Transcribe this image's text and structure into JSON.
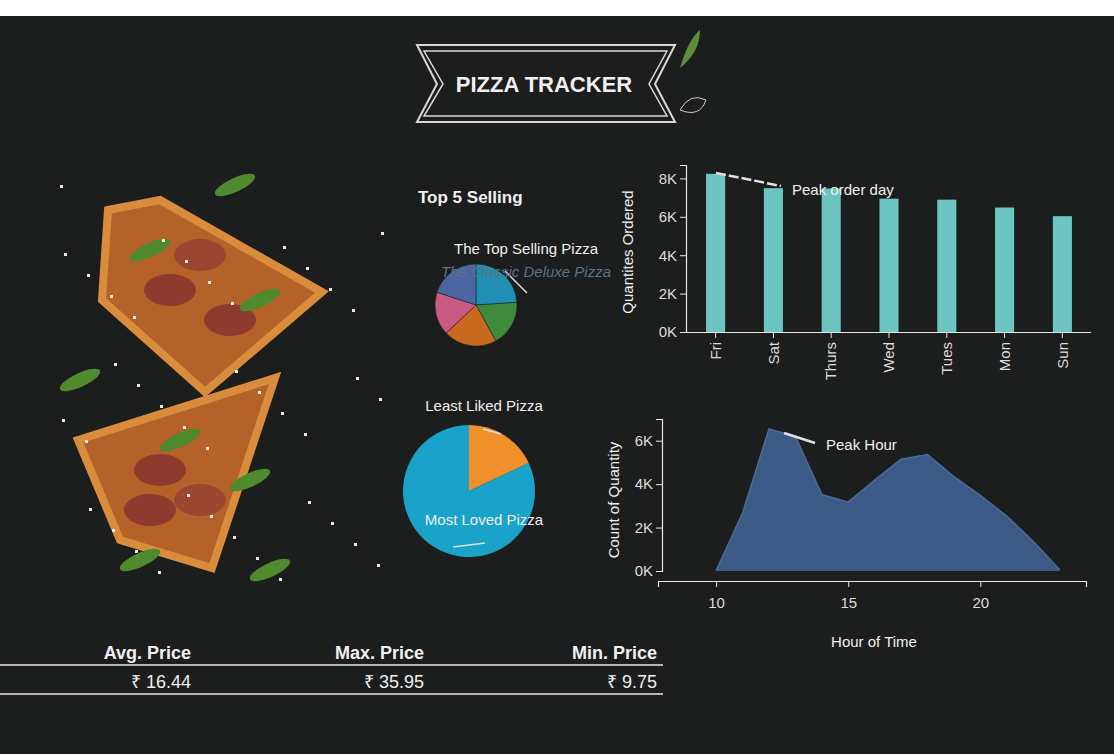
{
  "header": {
    "title": "PIZZA TRACKER"
  },
  "chart_data": [
    {
      "type": "pie",
      "title": "Top 5 Selling",
      "categories": [
        "The Classic Deluxe Pizza",
        null,
        null,
        null,
        null
      ],
      "values": [
        24,
        18,
        21,
        17,
        20
      ],
      "colors": [
        "#1f8fb3",
        "#3f8a3c",
        "#c9681f",
        "#c85a83",
        "#4b65a1"
      ],
      "annotations": [
        "The Top Selling Pizza"
      ]
    },
    {
      "type": "pie",
      "categories": [
        "Least Liked Pizza",
        "Most Loved Pizza"
      ],
      "values": [
        18,
        82
      ],
      "colors": [
        "#f0902c",
        "#1aa3c8"
      ]
    },
    {
      "type": "bar",
      "categories": [
        "Fri",
        "Sat",
        "Thurs",
        "Wed",
        "Tues",
        "Mon",
        "Sun"
      ],
      "values": [
        8242,
        7493,
        7478,
        6946,
        6895,
        6485,
        6035
      ],
      "color": "#6cc5c1",
      "ylabel": "Quantites Ordered",
      "ylim": [
        0,
        8700
      ],
      "yticks": [
        {
          "value": 0,
          "label": "0K"
        },
        {
          "value": 2000,
          "label": "2K"
        },
        {
          "value": 4000,
          "label": "4K"
        },
        {
          "value": 6000,
          "label": "6K"
        },
        {
          "value": 8000,
          "label": "8K"
        }
      ],
      "annotations": [
        "Peak order day"
      ]
    },
    {
      "type": "area",
      "x": [
        10,
        11,
        12,
        13,
        14,
        15,
        16,
        17,
        18,
        19,
        20,
        21,
        22,
        23
      ],
      "values": [
        18,
        2672,
        6543,
        6203,
        3521,
        3170,
        4185,
        5143,
        5359,
        4350,
        3487,
        2528,
        1370,
        68
      ],
      "color": "#3b5b86",
      "xlabel": "Hour of Time",
      "ylabel": "Count of Quantity",
      "xlim": [
        7.8,
        24
      ],
      "xticks": [
        10,
        15,
        20
      ],
      "ylim": [
        0,
        7000
      ],
      "yticks": [
        {
          "value": 0,
          "label": "0K"
        },
        {
          "value": 2000,
          "label": "2K"
        },
        {
          "value": 4000,
          "label": "4K"
        },
        {
          "value": 6000,
          "label": "6K"
        }
      ],
      "annotations": [
        "Peak Hour"
      ]
    }
  ],
  "price_table": {
    "headers": [
      "Avg. Price",
      "Max. Price",
      "Min. Price"
    ],
    "values": [
      "₹ 16.44",
      "₹ 35.95",
      "₹ 9.75"
    ]
  }
}
